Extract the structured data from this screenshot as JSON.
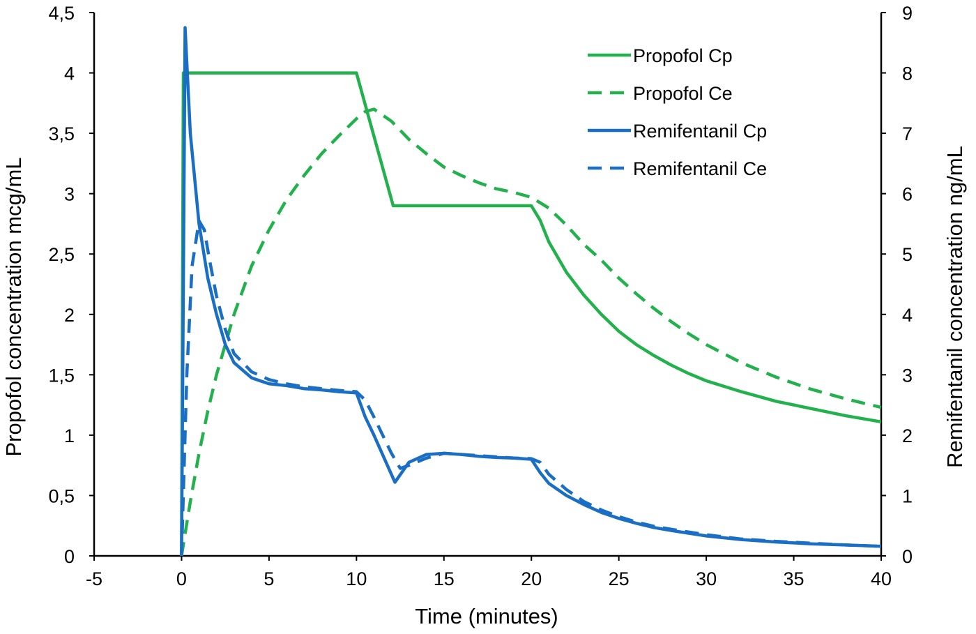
{
  "chart_data": {
    "type": "line",
    "xlabel": "Time (minutes)",
    "y_left_label": "Propofol concentration mcg/mL",
    "y_right_label": "Remifentanil concentration  ng/mL",
    "xlim": [
      -5,
      40
    ],
    "y_left_lim": [
      0,
      4.5
    ],
    "y_right_lim": [
      0,
      9
    ],
    "x_ticks": [
      -5,
      0,
      5,
      10,
      15,
      20,
      25,
      30,
      35,
      40
    ],
    "x_tick_labels": [
      "-5",
      "0",
      "5",
      "10",
      "15",
      "20",
      "25",
      "30",
      "35",
      "40"
    ],
    "y_left_ticks": [
      0,
      0.5,
      1,
      1.5,
      2,
      2.5,
      3,
      3.5,
      4,
      4.5
    ],
    "y_left_tick_labels": [
      "0",
      "0,5",
      "1",
      "1,5",
      "2",
      "2,5",
      "3",
      "3,5",
      "4",
      "4,5"
    ],
    "y_right_ticks": [
      0,
      1,
      2,
      3,
      4,
      5,
      6,
      7,
      8,
      9
    ],
    "y_right_tick_labels": [
      "0",
      "1",
      "2",
      "3",
      "4",
      "5",
      "6",
      "7",
      "8",
      "9"
    ],
    "grid": false,
    "legend_position": "top-right",
    "series": [
      {
        "name": "Propofol Cp",
        "axis": "left",
        "color": "#22b14c",
        "dash": "solid",
        "x": [
          0,
          0.1,
          0.3,
          10,
          12.1,
          20,
          20.5,
          21,
          22,
          23,
          24,
          25,
          26,
          27,
          28,
          29,
          30,
          32,
          34,
          36,
          38,
          40
        ],
        "y": [
          0,
          4,
          4,
          4,
          2.9,
          2.9,
          2.78,
          2.6,
          2.35,
          2.16,
          2.0,
          1.86,
          1.75,
          1.66,
          1.58,
          1.51,
          1.45,
          1.36,
          1.28,
          1.22,
          1.16,
          1.11
        ]
      },
      {
        "name": "Propofol Ce",
        "axis": "left",
        "color": "#22b14c",
        "dash": "dashed",
        "x": [
          0,
          0.5,
          1,
          1.5,
          2,
          3,
          4,
          5,
          6,
          7,
          8,
          9,
          10,
          10.5,
          11,
          12,
          13,
          14,
          15,
          16,
          17,
          18,
          19,
          20,
          21,
          22,
          23,
          24,
          25,
          26,
          27,
          28,
          29,
          30,
          32,
          34,
          36,
          38,
          40
        ],
        "y": [
          0,
          0.45,
          0.85,
          1.2,
          1.5,
          2.0,
          2.4,
          2.7,
          2.95,
          3.15,
          3.33,
          3.48,
          3.62,
          3.68,
          3.7,
          3.6,
          3.45,
          3.33,
          3.22,
          3.15,
          3.09,
          3.04,
          3.01,
          2.97,
          2.88,
          2.74,
          2.58,
          2.45,
          2.3,
          2.17,
          2.05,
          1.94,
          1.84,
          1.75,
          1.6,
          1.48,
          1.38,
          1.3,
          1.23
        ]
      },
      {
        "name": "Remifentanil Cp",
        "axis": "right",
        "color": "#1a6fc4",
        "dash": "solid",
        "x": [
          0,
          0.2,
          0.5,
          1,
          1.5,
          2,
          2.5,
          3,
          4,
          5,
          6,
          7,
          8,
          9,
          10,
          10.5,
          11,
          12.2,
          13,
          14,
          15,
          16,
          17,
          18,
          19,
          20,
          20.5,
          21,
          22,
          23,
          24,
          25,
          26,
          27,
          28,
          30,
          32,
          34,
          36,
          38,
          40
        ],
        "y": [
          0,
          8.75,
          7.0,
          5.5,
          4.6,
          4.0,
          3.5,
          3.2,
          2.95,
          2.85,
          2.82,
          2.77,
          2.75,
          2.72,
          2.7,
          2.3,
          2.0,
          1.22,
          1.55,
          1.68,
          1.7,
          1.68,
          1.65,
          1.63,
          1.62,
          1.6,
          1.38,
          1.2,
          1.0,
          0.85,
          0.72,
          0.62,
          0.54,
          0.47,
          0.42,
          0.33,
          0.27,
          0.23,
          0.2,
          0.18,
          0.16
        ]
      },
      {
        "name": "Remifentanil Ce",
        "axis": "right",
        "color": "#1a6fc4",
        "dash": "dashed",
        "x": [
          0,
          0.3,
          0.6,
          1,
          1.3,
          1.6,
          2,
          2.5,
          3,
          4,
          5,
          6,
          7,
          8,
          9,
          10,
          10.5,
          11,
          12,
          12.5,
          13,
          14,
          15,
          16,
          17,
          18,
          19,
          20,
          20.5,
          21,
          22,
          23,
          24,
          25,
          26,
          27,
          28,
          30,
          32,
          34,
          36,
          38,
          40
        ],
        "y": [
          0,
          3.0,
          4.8,
          5.55,
          5.4,
          4.9,
          4.3,
          3.75,
          3.35,
          3.05,
          2.92,
          2.85,
          2.8,
          2.77,
          2.74,
          2.72,
          2.58,
          2.3,
          1.7,
          1.45,
          1.5,
          1.62,
          1.7,
          1.68,
          1.66,
          1.64,
          1.62,
          1.61,
          1.55,
          1.35,
          1.1,
          0.9,
          0.76,
          0.65,
          0.56,
          0.49,
          0.44,
          0.35,
          0.28,
          0.24,
          0.21,
          0.18,
          0.16
        ]
      }
    ]
  }
}
